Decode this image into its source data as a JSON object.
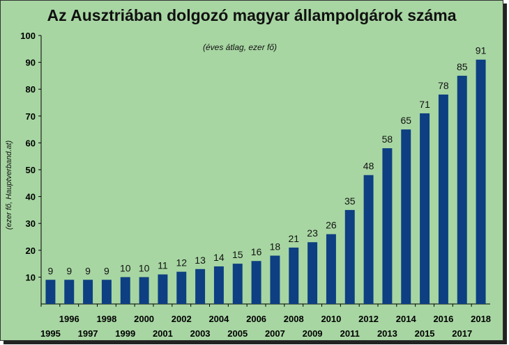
{
  "chart_data": {
    "type": "bar",
    "title": "Az Ausztriában dolgozó magyar állampolgárok száma",
    "subtitle": "(éves átlag, ezer fő)",
    "ylabel": "(ezer fő, Hauptverband.at)",
    "xlabel": "",
    "ylim": [
      0,
      100
    ],
    "yticks": [
      "10",
      "20",
      "30",
      "40",
      "50",
      "60",
      "70",
      "80",
      "90",
      "100"
    ],
    "categories": [
      "1995",
      "1996",
      "1997",
      "1998",
      "1999",
      "2000",
      "2001",
      "2002",
      "2003",
      "2004",
      "2005",
      "2006",
      "2007",
      "2008",
      "2009",
      "2010",
      "2011",
      "2012",
      "2013",
      "2014",
      "2015",
      "2016",
      "2017",
      "2018"
    ],
    "values": [
      9,
      9,
      9,
      9,
      10,
      10,
      11,
      12,
      13,
      14,
      15,
      16,
      18,
      21,
      23,
      26,
      35,
      48,
      58,
      65,
      71,
      78,
      85,
      91
    ],
    "bar_color": "#0d3f82",
    "background_color": "#a7d6a2",
    "grid": false,
    "data_labels": true
  }
}
